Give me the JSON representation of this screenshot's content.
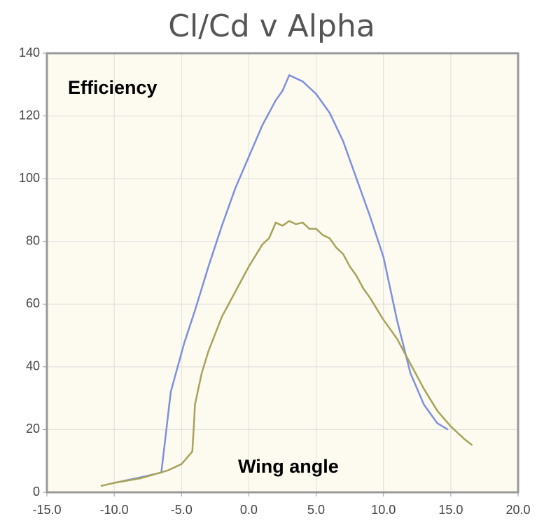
{
  "chart_data": {
    "type": "line",
    "title": "Cl/Cd v Alpha",
    "y_label": "Efficiency",
    "x_label": "Wing angle",
    "xlim": [
      -15,
      20
    ],
    "ylim": [
      0,
      140
    ],
    "xticks": [
      {
        "value": -15,
        "label": "-15.0"
      },
      {
        "value": -10,
        "label": "-10.0"
      },
      {
        "value": -5,
        "label": "-5.0"
      },
      {
        "value": 0,
        "label": "0.0"
      },
      {
        "value": 5,
        "label": "5.0"
      },
      {
        "value": 10,
        "label": "10.0"
      },
      {
        "value": 15,
        "label": "15.0"
      },
      {
        "value": 20,
        "label": "20.0"
      }
    ],
    "yticks": [
      0,
      20,
      40,
      60,
      80,
      100,
      120,
      140
    ],
    "grid": true,
    "series": [
      {
        "color": "#7f8fe0",
        "x": [
          -10,
          -8,
          -6.5,
          -5.8,
          -4.8,
          -4,
          -3,
          -2,
          -1,
          0,
          1,
          2,
          2.5,
          3,
          4,
          5,
          6,
          7,
          8,
          9,
          10,
          11,
          12,
          13,
          14,
          14.8
        ],
        "values": [
          3,
          4.8,
          6.3,
          32,
          47.6,
          58,
          72,
          85,
          97,
          107,
          117,
          125,
          128,
          133,
          131,
          127,
          121,
          112,
          100,
          88,
          75,
          55,
          38,
          28,
          22,
          20
        ]
      },
      {
        "color": "#a8a35a",
        "x": [
          -11,
          -10,
          -8,
          -6,
          -5,
          -4.2,
          -4.1,
          -4,
          -3.5,
          -3,
          -2,
          -1,
          0,
          1,
          1.5,
          2,
          2.5,
          3,
          3.5,
          4,
          4.5,
          5,
          5.5,
          6,
          6.5,
          7,
          7.5,
          8,
          8.5,
          9,
          10,
          11,
          12,
          13,
          14,
          15,
          16,
          16.6
        ],
        "values": [
          2,
          3,
          4.5,
          7,
          9,
          13,
          20,
          28,
          38,
          45,
          56,
          64,
          72,
          79,
          81,
          86,
          85,
          86.5,
          85.5,
          86,
          84,
          84,
          82,
          81,
          78,
          76,
          72,
          69,
          65,
          62,
          55,
          49,
          41,
          33,
          26,
          21,
          17,
          15
        ]
      }
    ]
  }
}
